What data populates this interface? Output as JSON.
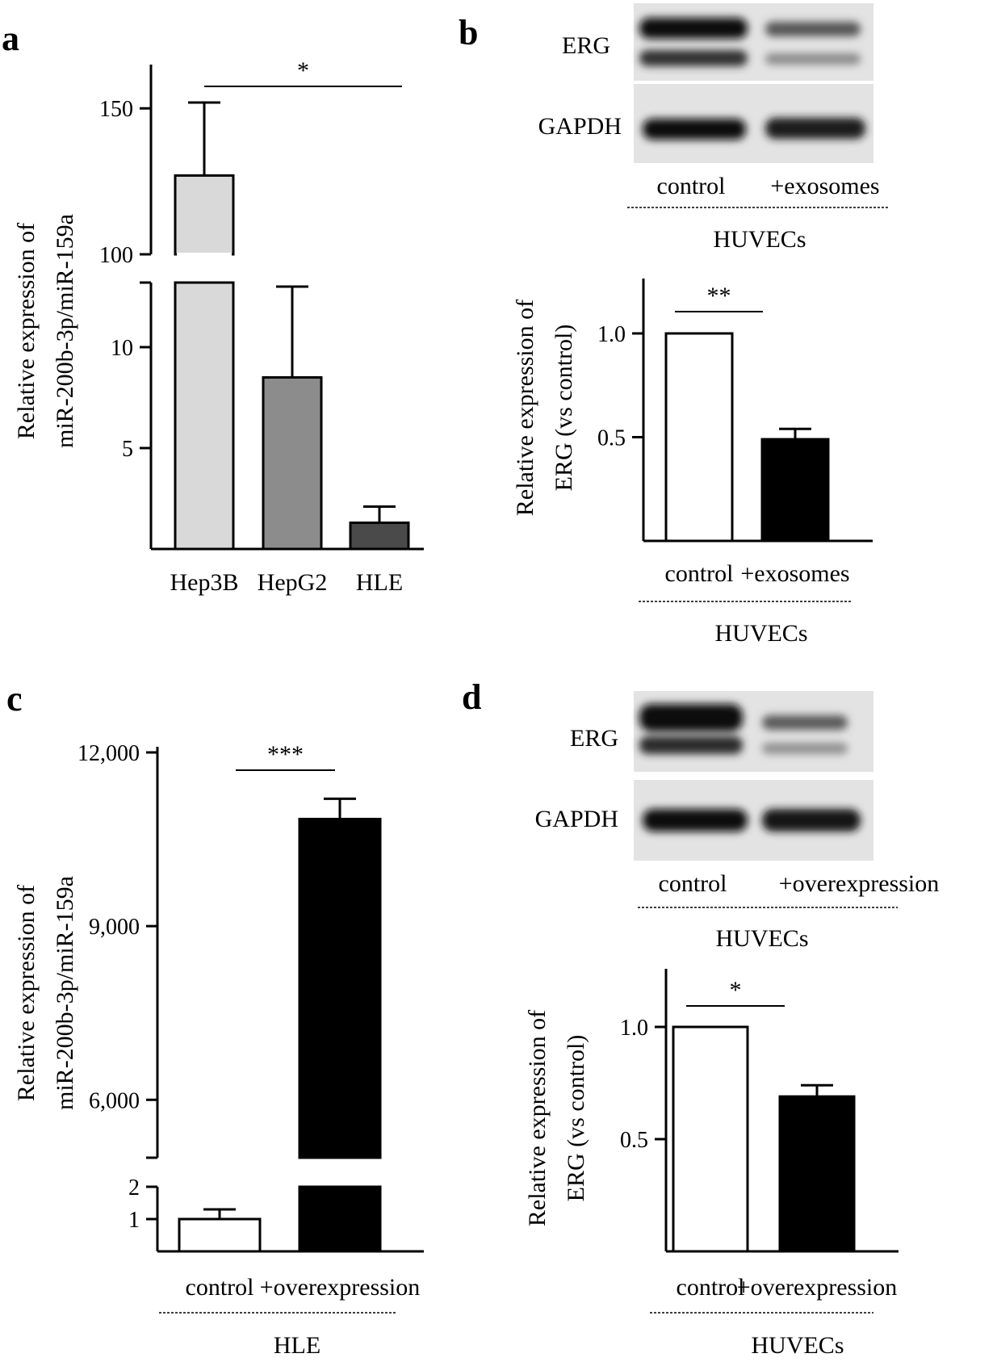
{
  "panels": {
    "a": {
      "label": "a"
    },
    "b": {
      "label": "b"
    },
    "c": {
      "label": "c"
    },
    "d": {
      "label": "d"
    }
  },
  "blots": {
    "b": {
      "top_label": "ERG",
      "bottom_label": "GAPDH",
      "lanes": [
        "control",
        "+exosomes"
      ],
      "group": "HUVECs"
    },
    "d": {
      "top_label": "ERG",
      "bottom_label": "GAPDH",
      "lanes": [
        "control",
        "+overexpression"
      ],
      "group": "HUVECs"
    }
  },
  "colors": {
    "hep3b": "#d9d9d9",
    "hepg2": "#8c8c8c",
    "hle": "#4a4a4a",
    "control": "#ffffff",
    "treated": "#000000"
  },
  "chart_data": [
    {
      "panel": "a",
      "type": "bar",
      "categories": [
        "Hep3B",
        "HepG2",
        "HLE"
      ],
      "values": [
        127,
        8.5,
        1.3
      ],
      "errors": [
        25,
        4.5,
        0.8
      ],
      "ylabel": [
        "Relative expression of",
        "miR-200b-3p/miR-159a"
      ],
      "y_break": true,
      "ylim_lower": [
        0,
        13
      ],
      "ylim_upper": [
        100,
        165
      ],
      "yticks_lower": [
        "5",
        "10"
      ],
      "yticks_upper": [
        "100",
        "150"
      ],
      "significance": [
        {
          "from": "Hep3B",
          "to": "HLE",
          "label": "*"
        }
      ]
    },
    {
      "panel": "b",
      "type": "bar",
      "categories": [
        "control",
        "+exosomes"
      ],
      "group_label": "HUVECs",
      "values": [
        1.0,
        0.49
      ],
      "errors": [
        0,
        0.05
      ],
      "ylabel": [
        "Relative expression of",
        "ERG (vs control)"
      ],
      "ylim": [
        0,
        1.0
      ],
      "yticks": [
        "0.5",
        "1.0"
      ],
      "significance": [
        {
          "from": "control",
          "to": "+exosomes",
          "label": "**"
        }
      ]
    },
    {
      "panel": "c",
      "type": "bar",
      "categories": [
        "control",
        "+overexpression"
      ],
      "group_label": "HLE",
      "values": [
        1,
        10850
      ],
      "errors": [
        0.3,
        350
      ],
      "ylabel": [
        "Relative expression of",
        "miR-200b-3p/miR-159a"
      ],
      "y_break": true,
      "ylim_lower": [
        0,
        2
      ],
      "ylim_upper": [
        5000,
        12000
      ],
      "yticks_lower": [
        "1",
        "2"
      ],
      "yticks_upper": [
        "6,000",
        "9,000",
        "12,000"
      ],
      "significance": [
        {
          "from": "control",
          "to": "+overexpression",
          "label": "***"
        }
      ]
    },
    {
      "panel": "d",
      "type": "bar",
      "categories": [
        "control",
        "+overexpression"
      ],
      "group_label": "HUVECs",
      "values": [
        1.0,
        0.69
      ],
      "errors": [
        0,
        0.05
      ],
      "ylabel": [
        "Relative expression of",
        "ERG (vs control)"
      ],
      "ylim": [
        0,
        1.0
      ],
      "yticks": [
        "0.5",
        "1.0"
      ],
      "significance": [
        {
          "from": "control",
          "to": "+overexpression",
          "label": "*"
        }
      ]
    }
  ]
}
